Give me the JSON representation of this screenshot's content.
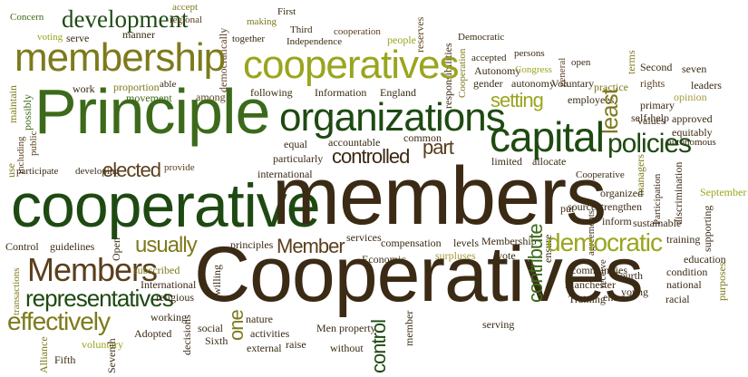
{
  "palette": {
    "dark_brown": "#3b2a14",
    "brown": "#5a3f1c",
    "dark_green": "#1e4a12",
    "green": "#3c6a1a",
    "olive": "#7d7a1c",
    "yellow_green": "#9aa51e",
    "khaki": "#a59a3a"
  },
  "words": {
    "development": "development",
    "accept": "accept",
    "regional": "regional",
    "making": "making",
    "first": "First",
    "concern": "Concern",
    "voting": "voting",
    "serve": "serve",
    "manner": "manner",
    "democratically": "democratically",
    "together": "together",
    "third": "Third",
    "independence": "Independence",
    "cooperation": "cooperation",
    "people": "people",
    "reserves": "reserves",
    "responsibilities": "responsibilities",
    "democratic_cap": "Democratic",
    "persons": "persons",
    "membership": "membership",
    "cooperatives": "cooperatives",
    "cooperation_cap": "Cooperation",
    "autonomy_cap": "Autonomy",
    "accepted": "accepted",
    "congress": "Congress",
    "general": "general",
    "open": "open",
    "terms": "terms",
    "second": "Second",
    "seven": "seven",
    "rights": "rights",
    "leaders": "leaders",
    "opinion": "opinion",
    "maintain": "maintain",
    "possibly": "possibly",
    "work": "work",
    "proportion": "proportion",
    "movement": "movement",
    "able": "able",
    "among": "among",
    "following": "following",
    "information": "Information",
    "england": "England",
    "gender": "gender",
    "autonomy": "autonomy",
    "voluntary_cap": "Voluntary",
    "practice": "practice",
    "primary": "primary",
    "employees": "employees",
    "principle": "Principle",
    "organizations": "organizations",
    "setting": "setting",
    "least": "least",
    "self_help": "self-help",
    "values": "values",
    "approved": "approved",
    "including": "including",
    "public": "public",
    "use": "use",
    "equal": "equal",
    "accountable": "accountable",
    "common": "common",
    "capital": "capital",
    "equitably": "equitably",
    "autonomous": "autonomous",
    "part": "part",
    "policies": "policies",
    "controlled": "controlled",
    "particularly": "particularly",
    "limited": "limited",
    "allocate": "allocate",
    "discrimination": "discrimination",
    "participate": "participate",
    "developing": "developing",
    "provide": "provide",
    "elected": "elected",
    "international": "international",
    "cooperative_cap": "Cooperative",
    "managers": "managers",
    "cooperative": "cooperative",
    "members": "members",
    "organized": "organized",
    "participation": "Participation",
    "september": "September",
    "put": "put",
    "strengthen": "strengthen",
    "agreements": "agreements",
    "inform": "inform",
    "sources": "sources",
    "supporting": "supporting",
    "sustainable": "sustainable",
    "control_cap": "Control",
    "guidelines": "guidelines",
    "open_cap": "Open",
    "usually": "usually",
    "principles": "principles",
    "member_cap": "Member",
    "services": "services",
    "compensation": "compensation",
    "levels": "levels",
    "membership_cap": "Membership",
    "ensure": "ensure",
    "democratic": "democratic",
    "training": "training",
    "transactions": "transactions",
    "economic": "Economic",
    "surpluses": "surpluses",
    "vote": "vote",
    "education": "education",
    "members_cap": "Members",
    "cooperatives_cap": "Cooperatives",
    "subscribed": "subscribed",
    "willing": "willing",
    "contribute": "contribute",
    "communities": "communities",
    "receive": "receive",
    "fourth": "Fourth",
    "condition": "condition",
    "purposes": "purposes",
    "representatives": "representatives",
    "international_cap": "International",
    "religious": "religious",
    "manchester": "Manchester",
    "young": "young",
    "national": "national",
    "effectively": "effectively",
    "working": "working",
    "one": "one",
    "decisions": "decisions",
    "nature": "nature",
    "men": "Men",
    "property": "property",
    "training_cap": "Training",
    "enter": "enter",
    "racial": "racial",
    "voluntary": "voluntary",
    "adopted": "Adopted",
    "social": "social",
    "sixth": "Sixth",
    "activities": "activities",
    "control": "control",
    "serving": "serving",
    "fifth": "Fifth",
    "seventh": "Seventh",
    "external": "external",
    "raise": "raise",
    "without": "without",
    "member": "member",
    "alliance": "Alliance"
  }
}
